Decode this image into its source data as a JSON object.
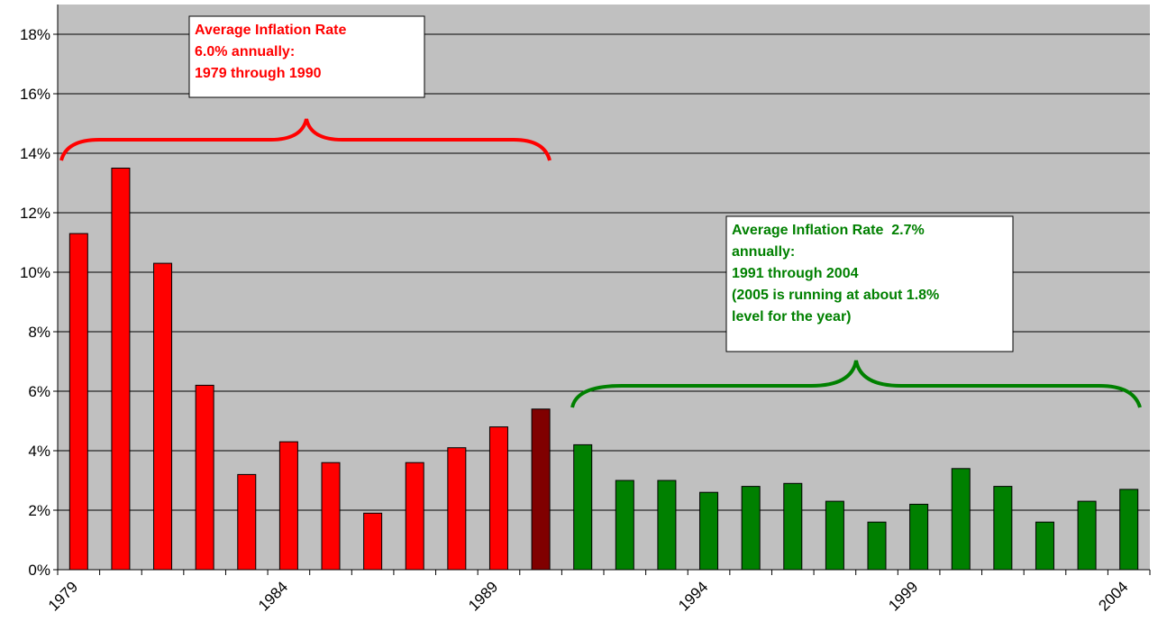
{
  "chart_data": {
    "type": "bar",
    "categories": [
      "1979",
      null,
      null,
      null,
      null,
      "1984",
      null,
      null,
      null,
      null,
      "1989",
      null,
      null,
      null,
      null,
      "1994",
      null,
      null,
      null,
      null,
      "1999",
      null,
      null,
      null,
      null,
      "2004"
    ],
    "values": [
      11.3,
      13.5,
      10.3,
      6.2,
      3.2,
      4.3,
      3.6,
      1.9,
      3.6,
      4.1,
      4.8,
      5.4,
      4.2,
      3.0,
      3.0,
      2.6,
      2.8,
      2.9,
      2.3,
      1.6,
      2.2,
      3.4,
      2.8,
      1.6,
      2.3,
      2.7
    ],
    "colors": [
      "#ff0000",
      "#ff0000",
      "#ff0000",
      "#ff0000",
      "#ff0000",
      "#ff0000",
      "#ff0000",
      "#ff0000",
      "#ff0000",
      "#ff0000",
      "#ff0000",
      "#800000",
      "#008000",
      "#008000",
      "#008000",
      "#008000",
      "#008000",
      "#008000",
      "#008000",
      "#008000",
      "#008000",
      "#008000",
      "#008000",
      "#008000",
      "#008000",
      "#008000"
    ],
    "ylim": [
      0,
      19
    ],
    "yticks": [
      {
        "value": 0,
        "label": "0%"
      },
      {
        "value": 2,
        "label": "2%"
      },
      {
        "value": 4,
        "label": "4%"
      },
      {
        "value": 6,
        "label": "6%"
      },
      {
        "value": 8,
        "label": "8%"
      },
      {
        "value": 10,
        "label": "10%"
      },
      {
        "value": 12,
        "label": "12%"
      },
      {
        "value": 14,
        "label": "14%"
      },
      {
        "value": 16,
        "label": "16%"
      },
      {
        "value": 18,
        "label": "18%"
      }
    ],
    "grid": true,
    "annotations": [
      {
        "color": "#ff0000",
        "lines": [
          "Average Inflation Rate",
          "6.0% annually:",
          "1979 through 1990"
        ]
      },
      {
        "color": "#008000",
        "lines": [
          "Average Inflation Rate  2.7%",
          "annually:",
          "1991 through 2004",
          "(2005 is running at about 1.8%",
          "level for the year)"
        ]
      }
    ]
  }
}
